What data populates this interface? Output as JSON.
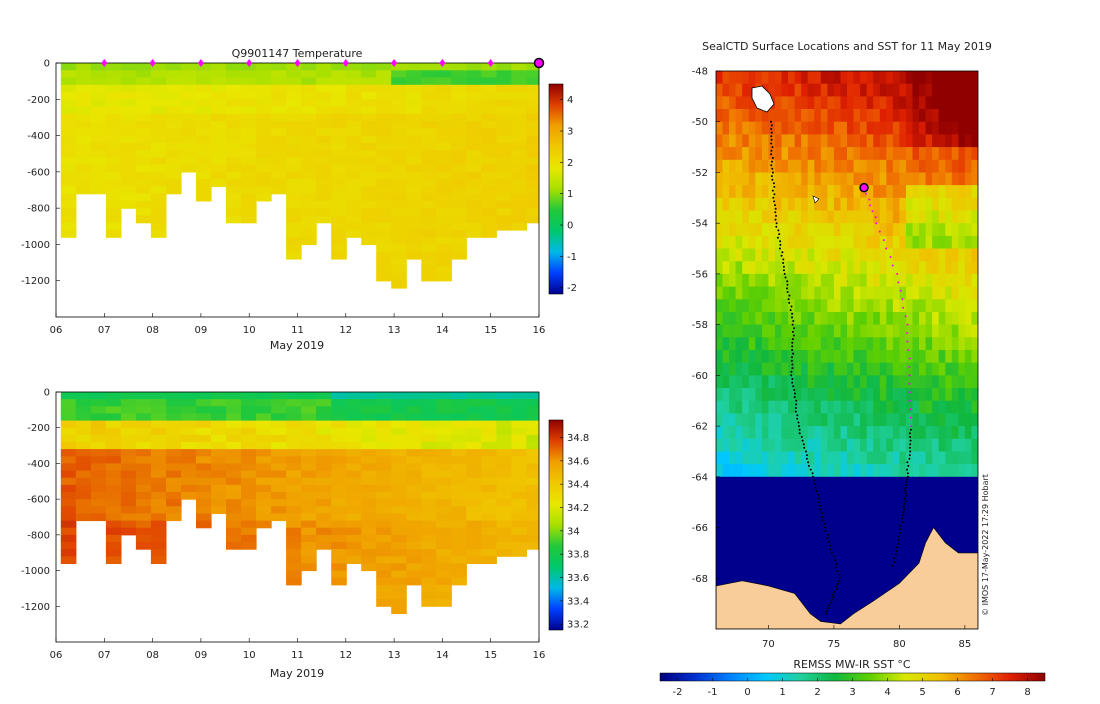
{
  "colors": {
    "temp_ramp": [
      "#00008f",
      "#0040ff",
      "#00b8e8",
      "#00c86a",
      "#22c83a",
      "#a8e000",
      "#e8e800",
      "#f0c800",
      "#f0a000",
      "#e04000",
      "#8f0000"
    ],
    "sal_ramp": [
      "#00008f",
      "#0040ff",
      "#00b8e8",
      "#00c86a",
      "#22c83a",
      "#a8e000",
      "#e8e800",
      "#f0c800",
      "#f0a000",
      "#e04000",
      "#8f0000"
    ],
    "sst_ramp": [
      "#00007f",
      "#0030d0",
      "#0080ff",
      "#00c8ff",
      "#20d0a0",
      "#10b840",
      "#60d000",
      "#d8e800",
      "#f0c000",
      "#f07000",
      "#e02000",
      "#900000"
    ],
    "land": "#f9cd9a",
    "ice": "#00008c",
    "profile_marker": "#ff00ff",
    "track": "#000000"
  },
  "chart_data": [
    {
      "type": "heatmap",
      "title": "Q9901147  Temperature",
      "xlabel": "May 2019",
      "ylabel": "",
      "x_tick_labels": [
        "06",
        "07",
        "08",
        "09",
        "10",
        "11",
        "12",
        "13",
        "14",
        "15",
        "16"
      ],
      "y_tick_labels": [
        "0",
        "-200",
        "-400",
        "-600",
        "-800",
        "-1000",
        "-1200"
      ],
      "ylim": [
        -1400,
        0
      ],
      "xlim": [
        6,
        16
      ],
      "colorbar_ticks": [
        "4",
        "3",
        "2",
        "1",
        "0",
        "-1",
        "-2"
      ],
      "clim": [
        -2.2,
        4.5
      ],
      "profile_times": [
        7,
        8,
        9,
        10,
        11,
        12,
        13,
        14,
        15,
        16
      ],
      "profile_max_depths": [
        -930,
        -700,
        -690,
        -930,
        -800,
        -860,
        -940,
        -720,
        -600,
        -750,
        -680,
        -860,
        -860,
        -760,
        -700,
        -1050,
        -1000,
        -850,
        -1070,
        -960,
        -980,
        -1180,
        -1220,
        -1060,
        -1200,
        -1170,
        -1080,
        -950,
        -930,
        -910,
        -890,
        -850
      ],
      "values_summary": {
        "surface_layer_c": 1.2,
        "deep_layer_c": 2.2
      }
    },
    {
      "type": "heatmap",
      "title": "",
      "xlabel": "May 2019",
      "ylabel": "",
      "x_tick_labels": [
        "06",
        "07",
        "08",
        "09",
        "10",
        "11",
        "12",
        "13",
        "14",
        "15",
        "16"
      ],
      "y_tick_labels": [
        "0",
        "-200",
        "-400",
        "-600",
        "-800",
        "-1000",
        "-1200"
      ],
      "ylim": [
        -1400,
        0
      ],
      "xlim": [
        6,
        16
      ],
      "colorbar_ticks": [
        "34.8",
        "34.6",
        "34.4",
        "34.2",
        "34",
        "33.8",
        "33.6",
        "33.4",
        "33.2"
      ],
      "clim": [
        33.15,
        34.95
      ],
      "values_summary": {
        "surface_layer_psu": 33.9,
        "deep_layer_psu": 34.7
      }
    },
    {
      "type": "heatmap",
      "title": "SealCTD Surface Locations and SST for 11 May 2019",
      "xlabel": "",
      "x_tick_labels": [
        "70",
        "75",
        "80",
        "85"
      ],
      "y_tick_labels": [
        "-48",
        "-50",
        "-52",
        "-54",
        "-56",
        "-58",
        "-60",
        "-62",
        "-64",
        "-66",
        "-68"
      ],
      "xlim": [
        66,
        86
      ],
      "ylim": [
        -70,
        -48
      ],
      "colorbar_label": "REMSS MW-IR SST °C",
      "colorbar_ticks": [
        "-2",
        "-1",
        "0",
        "1",
        "2",
        "3",
        "4",
        "5",
        "6",
        "7",
        "8"
      ],
      "clim": [
        -2.5,
        8.5
      ],
      "credit": "© IMOS 17-May-2022 17:29 Hobart",
      "latest_position": {
        "lon": 77.3,
        "lat": -52.6
      }
    }
  ]
}
